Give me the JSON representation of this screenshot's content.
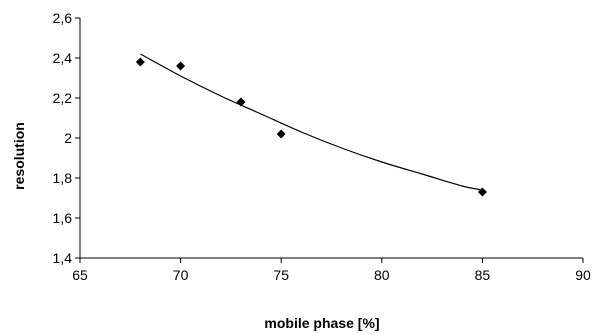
{
  "chart_data": {
    "type": "scatter",
    "xlabel": "mobile phase [%]",
    "ylabel": "resolution",
    "xlim": [
      65,
      90
    ],
    "ylim": [
      1.4,
      2.6
    ],
    "x_ticks": [
      "65",
      "70",
      "75",
      "80",
      "85",
      "90"
    ],
    "y_ticks": [
      "1,4",
      "1,6",
      "1,8",
      "2",
      "2,2",
      "2,4",
      "2,6"
    ],
    "grid": false,
    "legend": "none",
    "series": [
      {
        "x": [
          68,
          70,
          73,
          75,
          85
        ],
        "y": [
          2.38,
          2.36,
          2.18,
          2.02,
          1.73
        ],
        "marker": "diamond"
      }
    ],
    "trendline": {
      "type": "polynomial",
      "x": [
        68,
        70,
        72,
        74,
        76,
        78,
        80,
        82,
        84,
        85
      ],
      "y": [
        2.42,
        2.31,
        2.21,
        2.12,
        2.03,
        1.95,
        1.88,
        1.82,
        1.76,
        1.74
      ]
    },
    "colors": {
      "marker": "#000000",
      "line": "#000000",
      "axis": "#000000"
    }
  }
}
